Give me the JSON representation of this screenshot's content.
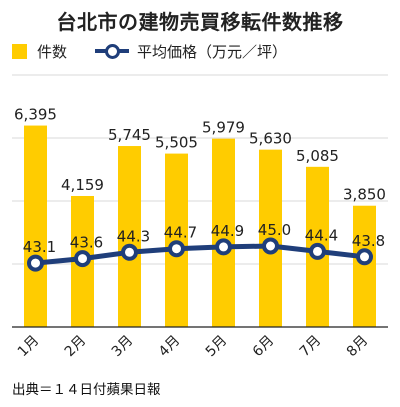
{
  "title": "台北市の建物売買移転件数推移",
  "source": "出典＝１４日付蘋果日報",
  "colors": {
    "bar": "#FFCC00",
    "line": "#1F3E7A",
    "marker_fill": "#ffffff",
    "grid": "#d9d9d9",
    "axis": "#222222"
  },
  "legend": [
    {
      "label": "件数",
      "icon": "bar-swatch"
    },
    {
      "label": "平均価格（万元／坪）",
      "icon": "line-marker-swatch"
    }
  ],
  "chart_data": {
    "type": "bar",
    "categories": [
      "1月",
      "2月",
      "3月",
      "4月",
      "5月",
      "6月",
      "7月",
      "8月"
    ],
    "series": [
      {
        "name": "件数",
        "type": "bar",
        "axis": "primary",
        "values": [
          6395,
          4159,
          5745,
          5505,
          5979,
          5630,
          5085,
          3850
        ],
        "labels": [
          "6,395",
          "4,159",
          "5,745",
          "5,505",
          "5,979",
          "5,630",
          "5,085",
          "3,850"
        ]
      },
      {
        "name": "平均価格（万元／坪）",
        "type": "line",
        "axis": "secondary",
        "values": [
          43.1,
          43.6,
          44.3,
          44.7,
          44.9,
          45.0,
          44.4,
          43.8
        ],
        "labels": [
          "43.1",
          "43.6",
          "44.3",
          "44.7",
          "44.9",
          "45.0",
          "44.4",
          "43.8"
        ]
      }
    ],
    "primary_ylim": [
      0,
      8000
    ],
    "secondary_ylim": [
      36,
      64
    ],
    "grid": true,
    "legend_position": "top-left"
  }
}
